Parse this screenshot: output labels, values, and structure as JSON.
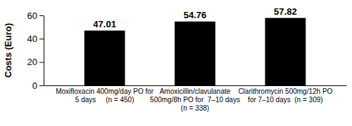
{
  "chart_data": {
    "type": "bar",
    "y_label": "Costs (Euro)",
    "categories": [
      "Moxifloxacin 400mg/day PO for\n5 days     (n = 450)",
      "Amoxicillin/clavulanate\n500mg/8h PO for  7–10 days\n(n = 338)",
      "Clarithromycin 500mg/12h PO\nfor 7–10 days  (n = 309)"
    ],
    "values": [
      47.01,
      54.76,
      57.82
    ],
    "color": "#000000",
    "ylim": [
      0,
      60
    ],
    "yticks": [
      0,
      20,
      40,
      60
    ],
    "grid": false,
    "data_labels": true
  }
}
